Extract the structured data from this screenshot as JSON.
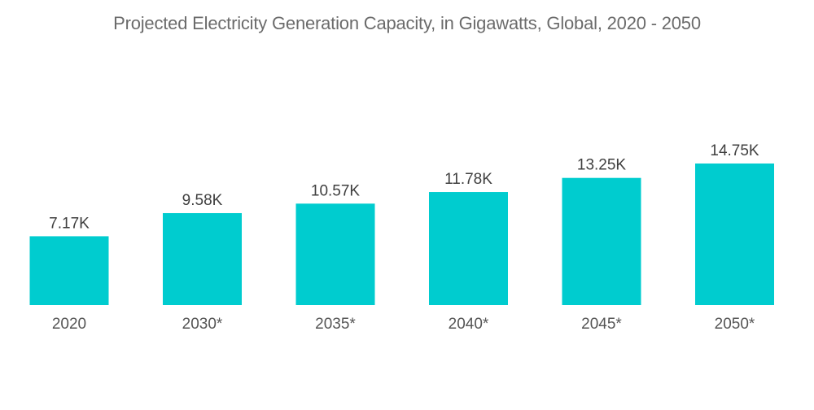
{
  "chart_data": {
    "type": "bar",
    "title": "Projected Electricity Generation Capacity, in Gigawatts, Global, 2020 - 2050",
    "xlabel": "",
    "ylabel": "",
    "categories": [
      "2020",
      "2030*",
      "2035*",
      "2040*",
      "2045*",
      "2050*"
    ],
    "values": [
      7170,
      9580,
      10570,
      11780,
      13250,
      14750
    ],
    "data_labels": [
      "7.17K",
      "9.58K",
      "10.57K",
      "11.78K",
      "13.25K",
      "14.75K"
    ],
    "ylim": [
      0,
      14750
    ],
    "grid": false,
    "legend": "none",
    "bar_color": "#00cccf"
  }
}
